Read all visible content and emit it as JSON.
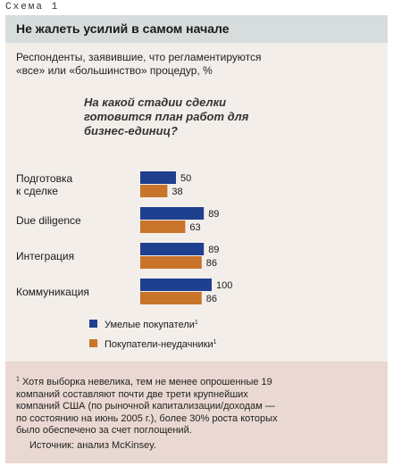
{
  "header": {
    "scheme_label": "Схема 1"
  },
  "title": "Не жалеть усилий в самом начале",
  "subtitle": "Респонденты, заявившие, что регламентируются «все» или «большинство» процедур, %",
  "question": "На какой стадии сделки готовится план работ для бизнес-единиц?",
  "chart_data": {
    "type": "bar",
    "orientation": "horizontal",
    "categories": [
      "Подготовка к сделке",
      "Due diligence",
      "Интеграция",
      "Коммуникация"
    ],
    "category_lines": [
      [
        "Подготовка",
        "к сделке"
      ],
      [
        "Due diligence"
      ],
      [
        "Интеграция"
      ],
      [
        "Коммуникация"
      ]
    ],
    "series": [
      {
        "name": "Умелые покупатели",
        "sup": "1",
        "color": "#1f3f8f",
        "values": [
          50,
          89,
          89,
          100
        ]
      },
      {
        "name": "Покупатели-неудачники",
        "sup": "1",
        "color": "#c8742a",
        "values": [
          38,
          63,
          86,
          86
        ]
      }
    ],
    "xlim": [
      0,
      100
    ],
    "grid": false,
    "legend": "bottom-left"
  },
  "footnote": {
    "marker": "1",
    "text": "Хотя выборка невелика, тем не менее опрошенные 19 компаний составляют почти две трети крупнейших компаний США (по рыночной капитализации/доходам — по состоянию на июнь 2005 г.), более 30% роста которых было обеспечено за счет поглощений."
  },
  "source": "Источник: анализ McKinsey."
}
